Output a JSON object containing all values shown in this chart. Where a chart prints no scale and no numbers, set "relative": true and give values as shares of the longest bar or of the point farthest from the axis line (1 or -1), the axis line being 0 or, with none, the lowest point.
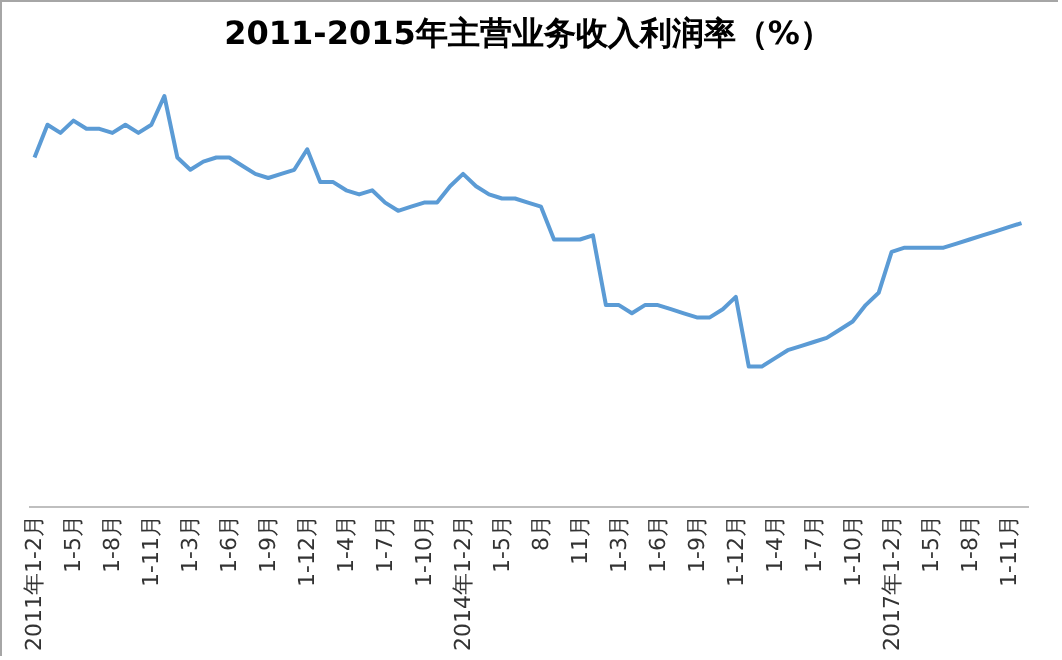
{
  "chart_data": {
    "type": "line",
    "title": "2011-2015年主营业务收入利润率（%）",
    "relative": true,
    "categories": [
      "2011年1-2月",
      null,
      null,
      "1-5月",
      null,
      null,
      "1-8月",
      null,
      null,
      "1-11月",
      null,
      null,
      "1-3月",
      null,
      null,
      "1-6月",
      null,
      null,
      "1-9月",
      null,
      null,
      "1-12月",
      null,
      null,
      "1-4月",
      null,
      null,
      "1-7月",
      null,
      null,
      "1-10月",
      null,
      null,
      "2014年1-2月",
      null,
      null,
      "1-5月",
      null,
      null,
      "8月",
      null,
      null,
      "11月",
      null,
      null,
      "1-3月",
      null,
      null,
      "1-6月",
      null,
      null,
      "1-9月",
      null,
      null,
      "1-12月",
      null,
      null,
      "1-4月",
      null,
      null,
      "1-7月",
      null,
      null,
      "1-10月",
      null,
      null,
      "2017年1-2月",
      null,
      null,
      "1-5月",
      null,
      null,
      "1-8月",
      null,
      null,
      "1-11月",
      null
    ],
    "series": [
      {
        "color": "#5b9bd5",
        "values": [
          0.85,
          0.93,
          0.91,
          0.94,
          0.92,
          0.92,
          0.91,
          0.93,
          0.91,
          0.93,
          1,
          0.85,
          0.82,
          0.84,
          0.85,
          0.85,
          0.83,
          0.81,
          0.8,
          0.81,
          0.82,
          0.87,
          0.79,
          0.79,
          0.77,
          0.76,
          0.77,
          0.74,
          0.72,
          0.73,
          0.74,
          0.74,
          0.78,
          0.81,
          0.78,
          0.76,
          0.75,
          0.75,
          0.74,
          0.73,
          0.65,
          0.65,
          0.65,
          0.66,
          0.49,
          0.49,
          0.47,
          0.49,
          0.49,
          0.48,
          0.47,
          0.46,
          0.46,
          0.48,
          0.51,
          0.34,
          0.34,
          0.36,
          0.38,
          0.39,
          0.4,
          0.41,
          0.43,
          0.45,
          0.49,
          0.52,
          0.62,
          0.63,
          0.63,
          0.63,
          0.63,
          0.64,
          0.65,
          0.66,
          0.67,
          0.68,
          0.69
        ]
      }
    ],
    "legend": false,
    "grid": false,
    "marker": "none",
    "line_style": "solid"
  }
}
